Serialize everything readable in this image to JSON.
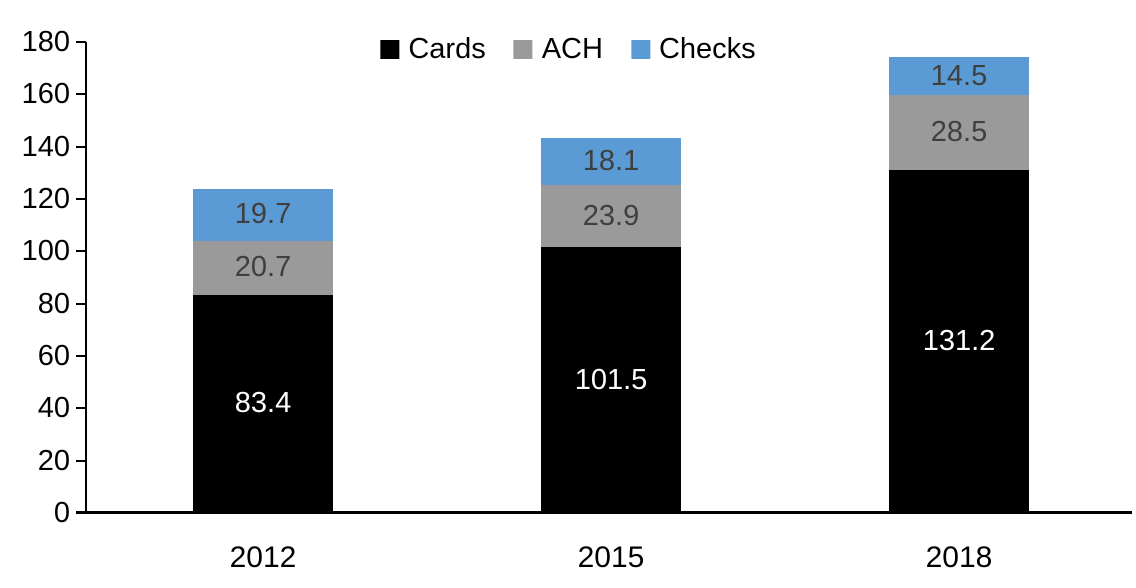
{
  "chart_data": {
    "type": "bar",
    "stacked": true,
    "title": "",
    "xlabel": "",
    "ylabel": "",
    "categories": [
      "2012",
      "2015",
      "2018"
    ],
    "series": [
      {
        "name": "Cards",
        "color": "#000000",
        "label_color": "#ffffff",
        "values": [
          83.4,
          101.5,
          131.2
        ]
      },
      {
        "name": "ACH",
        "color": "#9a9a9a",
        "label_color": "#3f3f3f",
        "values": [
          20.7,
          23.9,
          28.5
        ]
      },
      {
        "name": "Checks",
        "color": "#5b9bd5",
        "label_color": "#3f3f3f",
        "values": [
          19.7,
          18.1,
          14.5
        ]
      }
    ],
    "ylim": [
      0,
      180
    ],
    "yticks": [
      0,
      20,
      40,
      60,
      80,
      100,
      120,
      140,
      160,
      180
    ],
    "legend_position": "top",
    "grid": false,
    "axis_color": "#000000",
    "background_color": "#ffffff"
  }
}
